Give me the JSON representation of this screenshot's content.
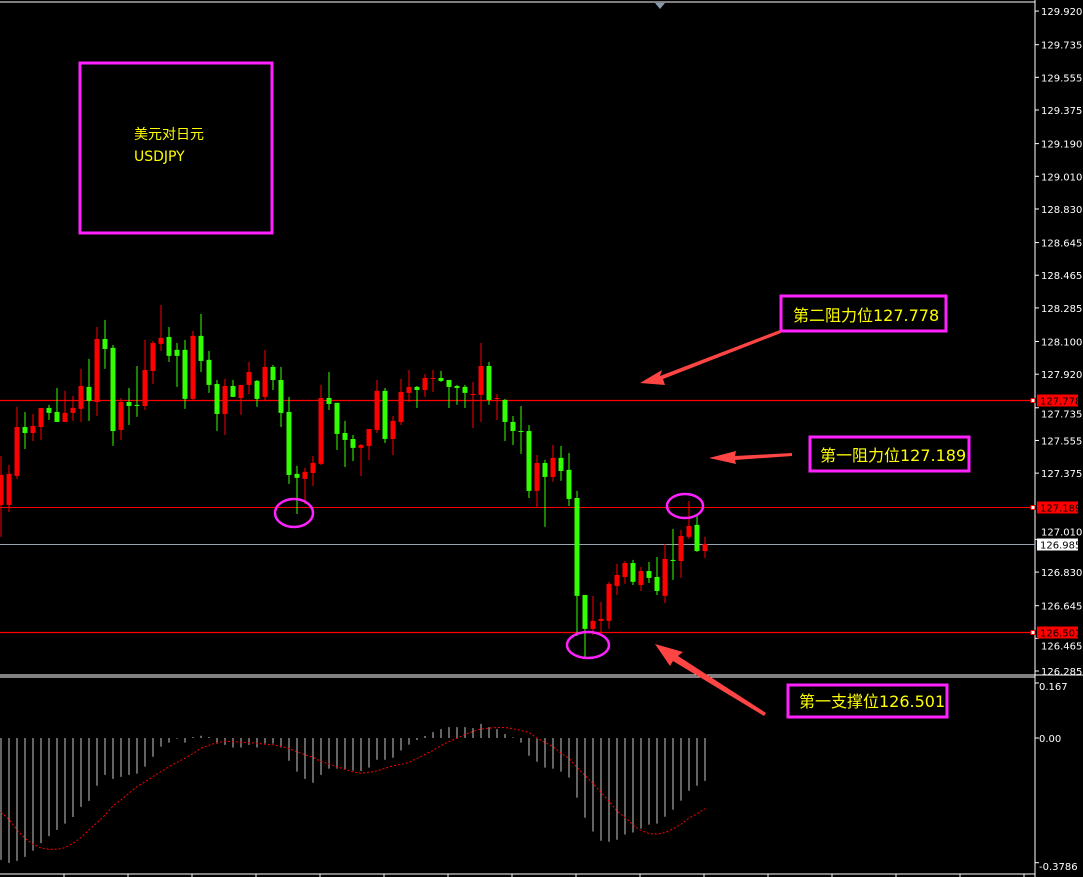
{
  "title_box": {
    "line1": "美元对日元",
    "line2": "USDJPY"
  },
  "annotations": {
    "resistance2": "第二阻力位127.778",
    "resistance1": "第一阻力位127.189",
    "support1": "第一支撑位126.501"
  },
  "colors": {
    "bull": "#ff0000",
    "bear": "#33ff00",
    "annotation_border": "#ff22ff",
    "annotation_text": "#ffff00",
    "arrow": "#ff4444",
    "macd_hist": "#c8c8c8",
    "signal": "#ff0000"
  },
  "chart_data": [
    {
      "type": "candlestick",
      "symbol": "USDJPY",
      "ylim": [
        126.285,
        129.92
      ],
      "y_ticks": [
        "129.920",
        "129.735",
        "129.555",
        "129.375",
        "129.190",
        "129.010",
        "128.830",
        "128.645",
        "128.465",
        "128.285",
        "128.100",
        "127.920",
        "127.735",
        "127.555",
        "127.375",
        "127.010",
        "126.830",
        "126.645",
        "126.465",
        "126.285"
      ],
      "horizontal_lines": [
        {
          "price": 127.778,
          "label": "127.778",
          "style": "red"
        },
        {
          "price": 127.189,
          "label": "127.189",
          "style": "red"
        },
        {
          "price": 126.985,
          "label": "126.985",
          "style": "current"
        },
        {
          "price": 126.501,
          "label": "126.501",
          "style": "red"
        }
      ],
      "highlighted_candles": [
        37,
        73,
        86
      ],
      "candles_ohlc": [
        [
          127.2,
          127.47,
          127.024,
          127.365
        ],
        [
          127.2,
          127.42,
          127.161,
          127.371
        ],
        [
          127.36,
          127.74,
          127.343,
          127.629
        ],
        [
          127.629,
          127.712,
          127.508,
          127.596
        ],
        [
          127.596,
          127.701,
          127.552,
          127.635
        ],
        [
          127.629,
          127.734,
          127.558,
          127.734
        ],
        [
          127.734,
          127.751,
          127.668,
          127.707
        ],
        [
          127.712,
          127.844,
          127.657,
          127.657
        ],
        [
          127.657,
          127.828,
          127.657,
          127.707
        ],
        [
          127.707,
          127.8,
          127.663,
          127.734
        ],
        [
          127.729,
          127.949,
          127.657,
          127.855
        ],
        [
          127.85,
          128.004,
          127.663,
          127.773
        ],
        [
          127.767,
          128.18,
          127.69,
          128.114
        ],
        [
          128.114,
          128.219,
          127.949,
          128.059
        ],
        [
          128.065,
          128.081,
          127.525,
          127.607
        ],
        [
          127.613,
          127.789,
          127.558,
          127.767
        ],
        [
          127.767,
          127.844,
          127.64,
          127.745
        ],
        [
          127.751,
          127.965,
          127.685,
          127.745
        ],
        [
          127.745,
          128.109,
          127.723,
          127.943
        ],
        [
          127.938,
          128.103,
          127.866,
          128.092
        ],
        [
          128.087,
          128.301,
          128.048,
          128.12
        ],
        [
          128.125,
          128.18,
          127.988,
          128.021
        ],
        [
          128.054,
          128.092,
          127.85,
          128.021
        ],
        [
          128.054,
          128.109,
          127.729,
          127.784
        ],
        [
          127.784,
          128.158,
          127.778,
          128.131
        ],
        [
          128.131,
          128.252,
          127.932,
          127.993
        ],
        [
          127.999,
          128.048,
          127.817,
          127.861
        ],
        [
          127.866,
          127.888,
          127.607,
          127.701
        ],
        [
          127.701,
          127.894,
          127.585,
          127.855
        ],
        [
          127.855,
          127.888,
          127.795,
          127.795
        ],
        [
          127.789,
          127.861,
          127.696,
          127.861
        ],
        [
          127.861,
          127.988,
          127.811,
          127.932
        ],
        [
          127.883,
          127.888,
          127.74,
          127.784
        ],
        [
          127.795,
          128.054,
          127.778,
          127.96
        ],
        [
          127.96,
          127.971,
          127.833,
          127.888
        ],
        [
          127.888,
          127.96,
          127.629,
          127.707
        ],
        [
          127.712,
          127.795,
          127.316,
          127.365
        ],
        [
          127.371,
          127.415,
          127.15,
          127.349
        ],
        [
          127.343,
          127.404,
          127.205,
          127.382
        ],
        [
          127.376,
          127.47,
          127.305,
          127.431
        ],
        [
          127.426,
          127.861,
          127.42,
          127.789
        ],
        [
          127.789,
          127.932,
          127.723,
          127.756
        ],
        [
          127.762,
          127.762,
          127.503,
          127.591
        ],
        [
          127.596,
          127.663,
          127.409,
          127.558
        ],
        [
          127.563,
          127.585,
          127.442,
          127.514
        ],
        [
          127.514,
          127.536,
          127.36,
          127.53
        ],
        [
          127.525,
          127.618,
          127.448,
          127.618
        ],
        [
          127.613,
          127.888,
          127.596,
          127.828
        ],
        [
          127.828,
          127.844,
          127.541,
          127.563
        ],
        [
          127.563,
          127.69,
          127.475,
          127.663
        ],
        [
          127.657,
          127.894,
          127.64,
          127.822
        ],
        [
          127.817,
          127.943,
          127.767,
          127.85
        ],
        [
          127.85,
          127.855,
          127.734,
          127.833
        ],
        [
          127.833,
          127.921,
          127.795,
          127.899
        ],
        [
          127.894,
          127.943,
          127.822,
          127.899
        ],
        [
          127.899,
          127.938,
          127.877,
          127.883
        ],
        [
          127.888,
          127.888,
          127.734,
          127.85
        ],
        [
          127.855,
          127.861,
          127.751,
          127.844
        ],
        [
          127.85,
          127.861,
          127.734,
          127.817
        ],
        [
          127.806,
          127.877,
          127.624,
          127.811
        ],
        [
          127.806,
          128.092,
          127.657,
          127.965
        ],
        [
          127.965,
          127.988,
          127.751,
          127.778
        ],
        [
          127.784,
          127.811,
          127.668,
          127.789
        ],
        [
          127.778,
          127.784,
          127.552,
          127.657
        ],
        [
          127.657,
          127.69,
          127.53,
          127.607
        ],
        [
          127.607,
          127.745,
          127.481,
          127.602
        ],
        [
          127.607,
          127.64,
          127.238,
          127.277
        ],
        [
          127.277,
          127.475,
          127.189,
          127.431
        ],
        [
          127.431,
          127.448,
          127.079,
          127.354
        ],
        [
          127.354,
          127.53,
          127.327,
          127.459
        ],
        [
          127.459,
          127.525,
          127.332,
          127.387
        ],
        [
          127.393,
          127.486,
          127.194,
          127.233
        ],
        [
          127.238,
          127.277,
          126.478,
          126.699
        ],
        [
          126.704,
          126.704,
          126.363,
          126.517
        ],
        [
          126.517,
          126.699,
          126.484,
          126.561
        ],
        [
          126.561,
          126.666,
          126.5,
          126.572
        ],
        [
          126.561,
          126.776,
          126.517,
          126.765
        ],
        [
          126.754,
          126.875,
          126.704,
          126.814
        ],
        [
          126.803,
          126.891,
          126.765,
          126.88
        ],
        [
          126.88,
          126.897,
          126.759,
          126.776
        ],
        [
          126.759,
          126.858,
          126.726,
          126.836
        ],
        [
          126.836,
          126.886,
          126.77,
          126.798
        ],
        [
          126.803,
          126.913,
          126.704,
          126.726
        ],
        [
          126.699,
          126.985,
          126.66,
          126.902
        ],
        [
          126.897,
          127.068,
          126.787,
          126.891
        ],
        [
          126.891,
          127.062,
          126.798,
          127.029
        ],
        [
          127.024,
          127.222,
          127.013,
          127.084
        ],
        [
          127.09,
          127.139,
          126.941,
          126.946
        ],
        [
          126.946,
          127.024,
          126.908,
          126.985
        ]
      ]
    },
    {
      "type": "bar+line",
      "indicator": "MACD",
      "ylim": [
        -0.3786,
        0.167
      ],
      "y_ticks": [
        "0.167",
        "0.00",
        "-0.3786"
      ],
      "histogram": [
        -0.37,
        -0.379,
        -0.373,
        -0.361,
        -0.342,
        -0.319,
        -0.298,
        -0.279,
        -0.26,
        -0.24,
        -0.209,
        -0.191,
        -0.145,
        -0.112,
        -0.124,
        -0.118,
        -0.112,
        -0.108,
        -0.087,
        -0.057,
        -0.026,
        -0.014,
        -0.002,
        -0.014,
        0.003,
        0.007,
        0.0,
        -0.017,
        -0.021,
        -0.029,
        -0.029,
        -0.021,
        -0.029,
        -0.017,
        -0.017,
        -0.029,
        -0.069,
        -0.102,
        -0.124,
        -0.136,
        -0.112,
        -0.093,
        -0.093,
        -0.096,
        -0.099,
        -0.1,
        -0.09,
        -0.066,
        -0.066,
        -0.06,
        -0.038,
        -0.02,
        -0.006,
        0.006,
        0.018,
        0.027,
        0.033,
        0.033,
        0.033,
        0.03,
        0.043,
        0.033,
        0.027,
        0.012,
        0.002,
        -0.014,
        -0.054,
        -0.072,
        -0.09,
        -0.093,
        -0.102,
        -0.12,
        -0.181,
        -0.242,
        -0.284,
        -0.312,
        -0.315,
        -0.309,
        -0.293,
        -0.287,
        -0.275,
        -0.263,
        -0.26,
        -0.239,
        -0.218,
        -0.19,
        -0.16,
        -0.145,
        -0.13
      ],
      "signal": [
        -0.226,
        -0.247,
        -0.279,
        -0.305,
        -0.322,
        -0.334,
        -0.338,
        -0.338,
        -0.333,
        -0.32,
        -0.302,
        -0.279,
        -0.257,
        -0.234,
        -0.206,
        -0.188,
        -0.168,
        -0.148,
        -0.133,
        -0.117,
        -0.102,
        -0.087,
        -0.074,
        -0.061,
        -0.047,
        -0.031,
        -0.022,
        -0.014,
        -0.01,
        -0.011,
        -0.013,
        -0.014,
        -0.016,
        -0.019,
        -0.021,
        -0.025,
        -0.032,
        -0.042,
        -0.051,
        -0.059,
        -0.071,
        -0.079,
        -0.087,
        -0.095,
        -0.103,
        -0.107,
        -0.104,
        -0.1,
        -0.092,
        -0.084,
        -0.08,
        -0.074,
        -0.062,
        -0.05,
        -0.038,
        -0.023,
        -0.011,
        -0.001,
        0.011,
        0.02,
        0.027,
        0.03,
        0.032,
        0.032,
        0.028,
        0.023,
        0.017,
        -0.001,
        -0.013,
        -0.026,
        -0.046,
        -0.062,
        -0.09,
        -0.114,
        -0.138,
        -0.165,
        -0.192,
        -0.222,
        -0.241,
        -0.264,
        -0.281,
        -0.29,
        -0.292,
        -0.287,
        -0.276,
        -0.262,
        -0.243,
        -0.23,
        -0.214
      ]
    }
  ]
}
